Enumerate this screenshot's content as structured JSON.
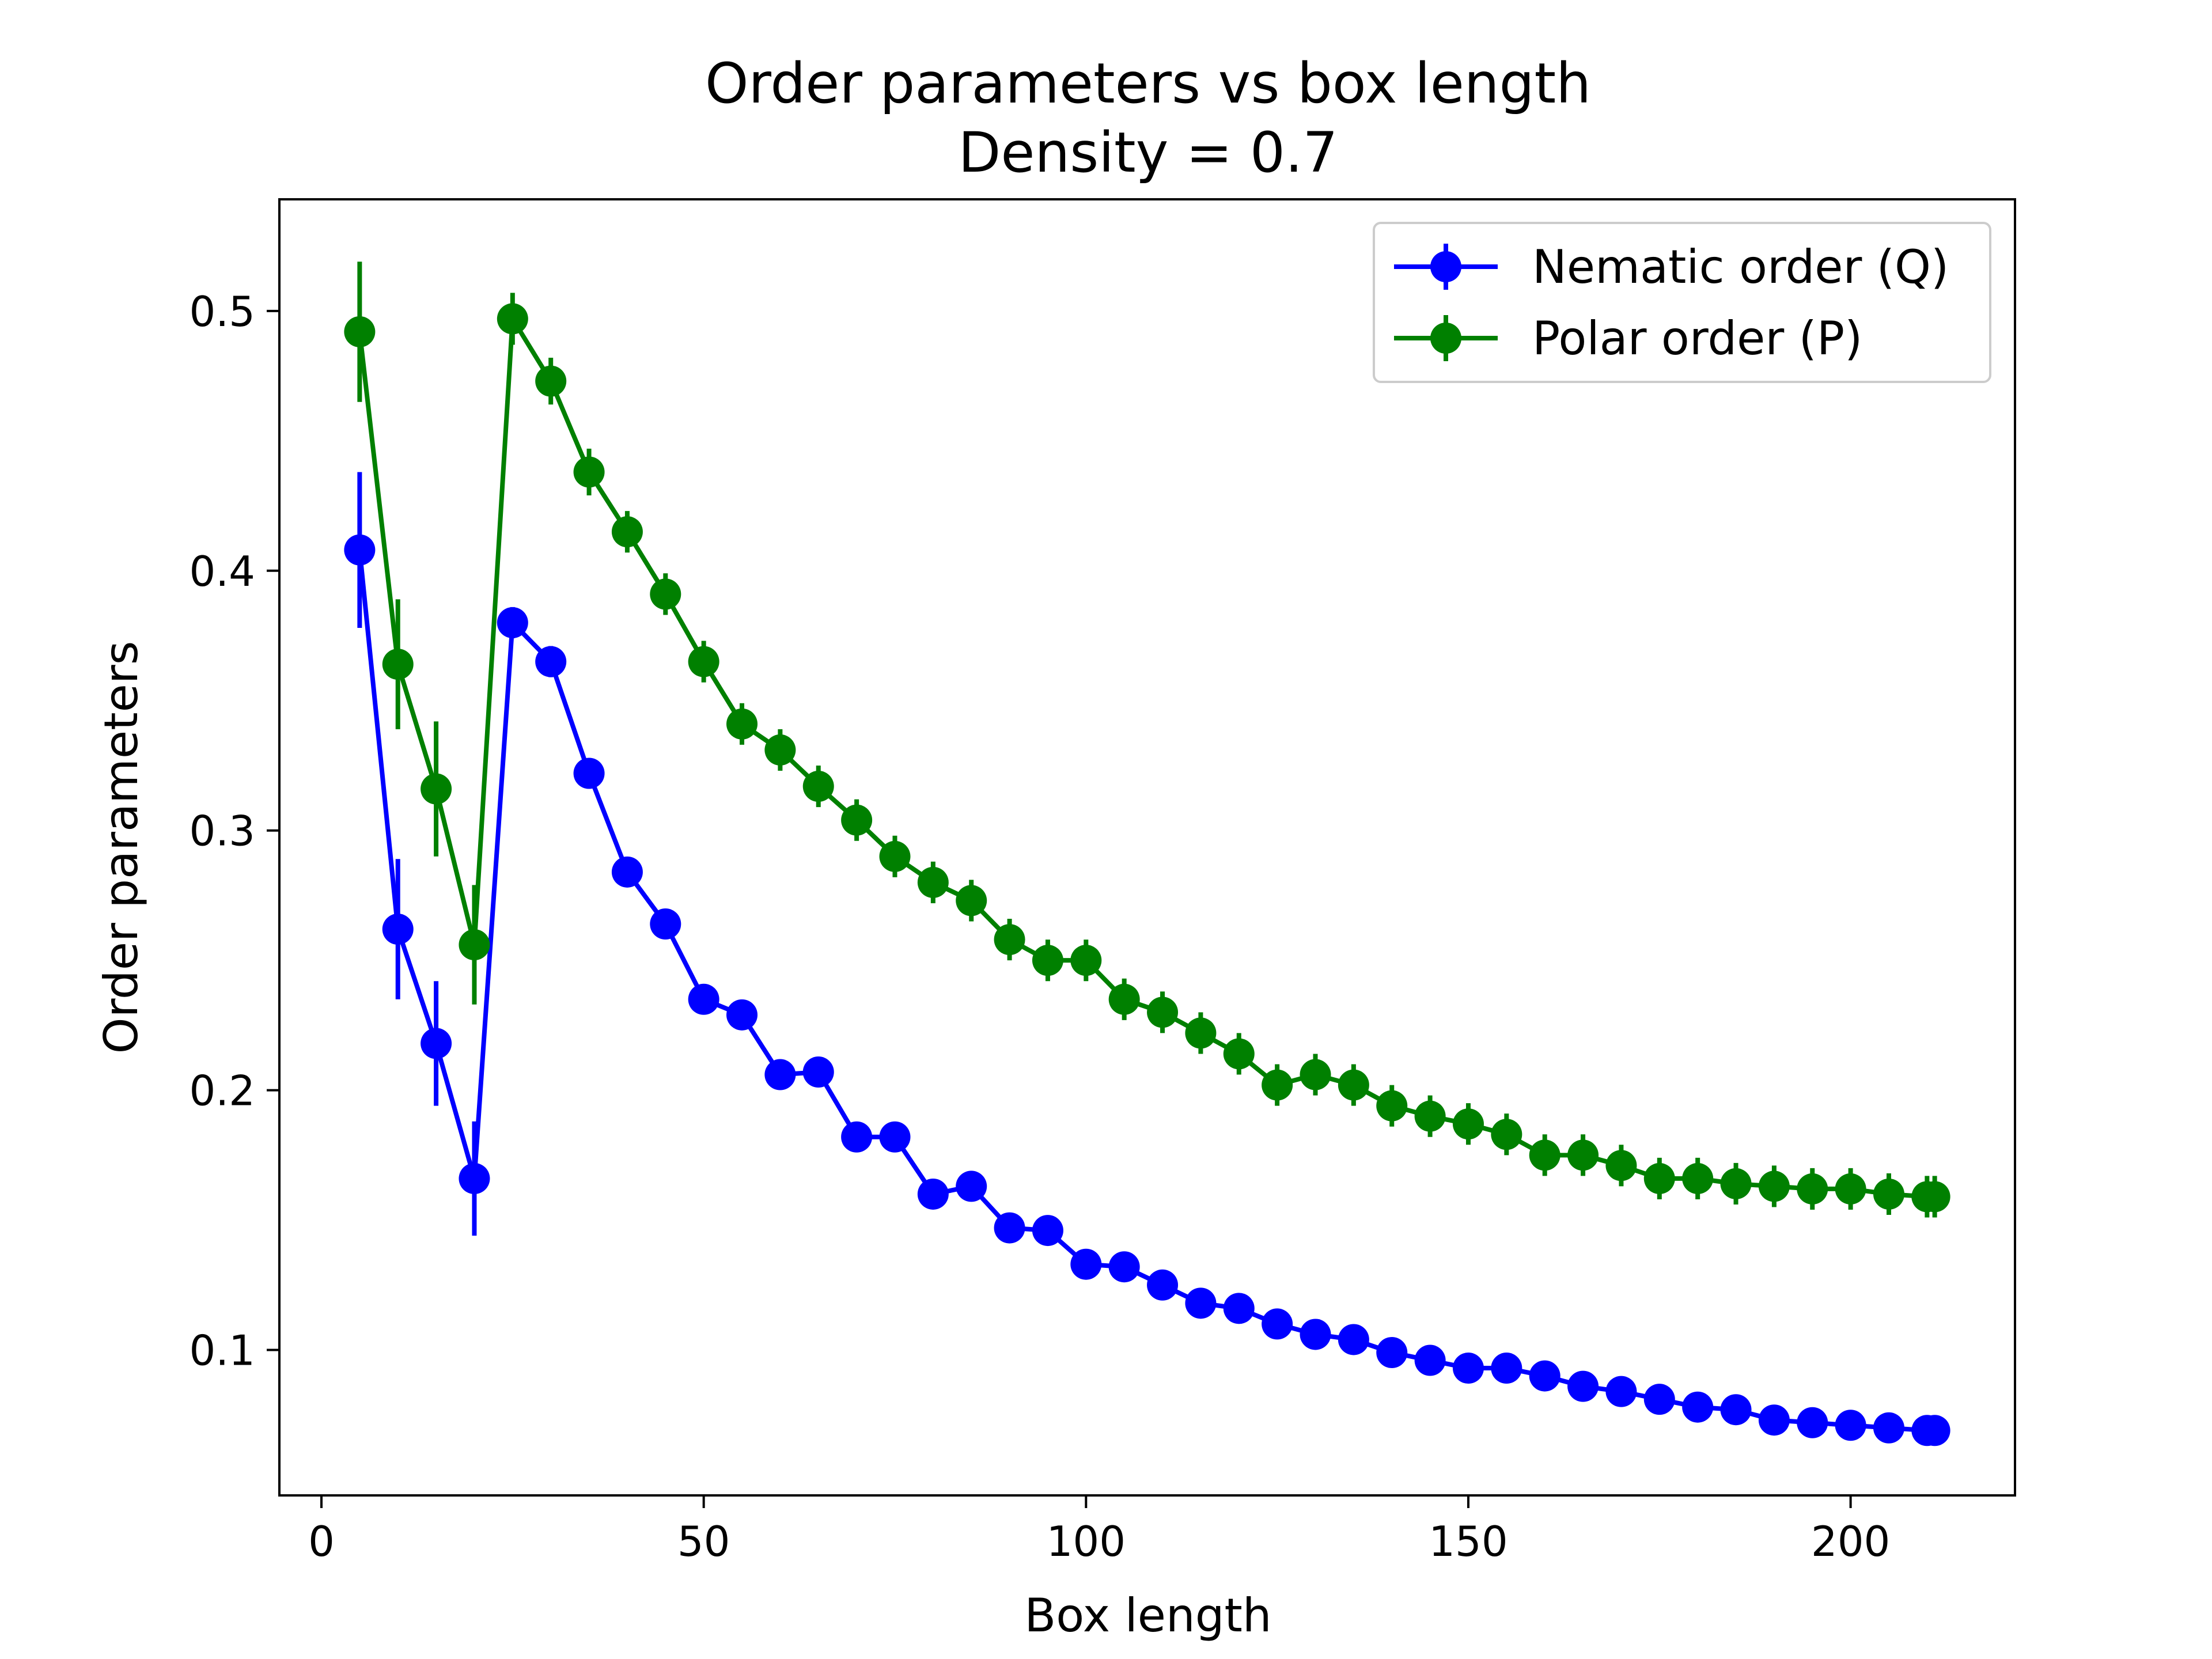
{
  "chart_data": {
    "type": "line",
    "title": "Order parameters vs box length",
    "subtitle": "Density = 0.7",
    "xlabel": "Box length",
    "ylabel": "Order parameters",
    "xlim": [
      -5.5,
      221.5
    ],
    "ylim": [
      0.044,
      0.543
    ],
    "xticks": [
      0,
      50,
      100,
      150,
      200
    ],
    "yticks": [
      0.1,
      0.2,
      0.3,
      0.4,
      0.5
    ],
    "grid": false,
    "legend_position": "top-right",
    "x": [
      5,
      10,
      15,
      20,
      25,
      30,
      35,
      40,
      45,
      50,
      55,
      60,
      65,
      70,
      75,
      80,
      85,
      90,
      95,
      100,
      105,
      110,
      115,
      120,
      125,
      130,
      135,
      140,
      145,
      150,
      155,
      160,
      165,
      170,
      175,
      180,
      185,
      190,
      195,
      200,
      205,
      210,
      211
    ],
    "series": [
      {
        "name": "Nematic order (Q)",
        "color": "#0000ff",
        "values": [
          0.408,
          0.262,
          0.218,
          0.166,
          0.38,
          0.365,
          0.322,
          0.284,
          0.264,
          0.235,
          0.229,
          0.206,
          0.207,
          0.182,
          0.182,
          0.16,
          0.163,
          0.147,
          0.146,
          0.133,
          0.132,
          0.125,
          0.118,
          0.116,
          0.11,
          0.106,
          0.104,
          0.099,
          0.096,
          0.093,
          0.093,
          0.09,
          0.086,
          0.084,
          0.081,
          0.078,
          0.077,
          0.073,
          0.072,
          0.071,
          0.07,
          0.069,
          0.069
        ],
        "errors": [
          0.03,
          0.027,
          0.024,
          0.022,
          0.006,
          0.006,
          0.005,
          0.004,
          0.004,
          0.004,
          0.004,
          0.004,
          0.004,
          0.003,
          0.003,
          0.003,
          0.003,
          0.003,
          0.003,
          0.003,
          0.003,
          0.003,
          0.003,
          0.003,
          0.003,
          0.003,
          0.003,
          0.003,
          0.003,
          0.003,
          0.003,
          0.003,
          0.003,
          0.003,
          0.003,
          0.003,
          0.003,
          0.003,
          0.003,
          0.003,
          0.003,
          0.003,
          0.003
        ]
      },
      {
        "name": "Polar order (P)",
        "color": "#008000",
        "values": [
          0.492,
          0.364,
          0.316,
          0.256,
          0.497,
          0.473,
          0.438,
          0.415,
          0.391,
          0.365,
          0.341,
          0.331,
          0.317,
          0.304,
          0.29,
          0.28,
          0.273,
          0.258,
          0.25,
          0.25,
          0.235,
          0.23,
          0.222,
          0.214,
          0.202,
          0.206,
          0.202,
          0.194,
          0.19,
          0.187,
          0.183,
          0.175,
          0.175,
          0.171,
          0.166,
          0.166,
          0.164,
          0.163,
          0.162,
          0.162,
          0.16,
          0.159,
          0.159
        ],
        "errors": [
          0.027,
          0.025,
          0.026,
          0.023,
          0.01,
          0.009,
          0.009,
          0.008,
          0.008,
          0.008,
          0.008,
          0.008,
          0.008,
          0.008,
          0.008,
          0.008,
          0.008,
          0.008,
          0.008,
          0.008,
          0.008,
          0.008,
          0.008,
          0.008,
          0.008,
          0.008,
          0.008,
          0.008,
          0.008,
          0.008,
          0.008,
          0.008,
          0.008,
          0.008,
          0.008,
          0.008,
          0.008,
          0.008,
          0.008,
          0.008,
          0.008,
          0.008,
          0.008
        ]
      }
    ]
  }
}
